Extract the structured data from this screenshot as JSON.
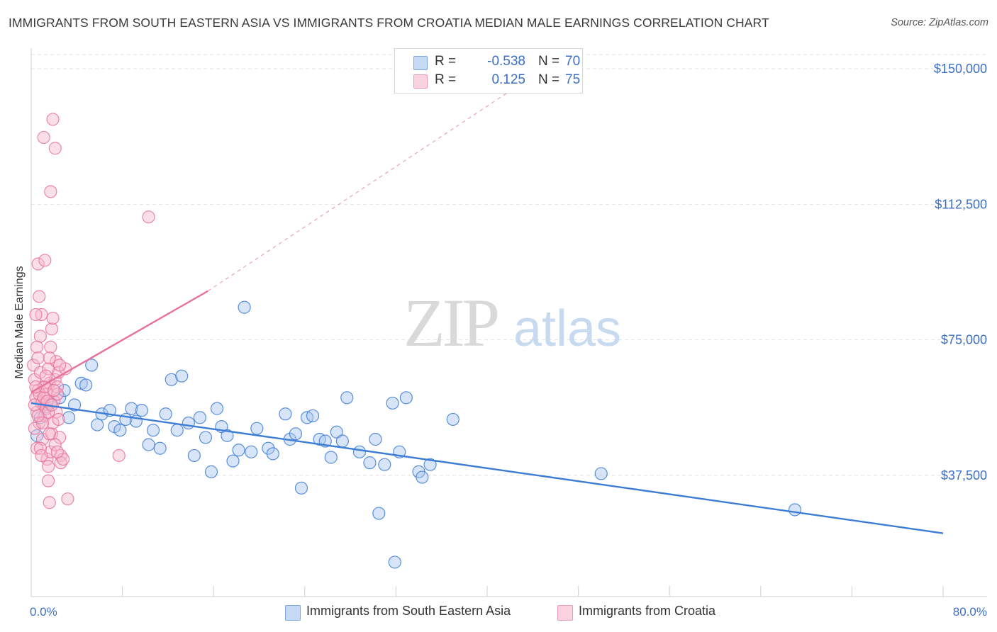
{
  "header": {
    "title": "IMMIGRANTS FROM SOUTH EASTERN ASIA VS IMMIGRANTS FROM CROATIA MEDIAN MALE EARNINGS CORRELATION CHART",
    "source": "Source: ZipAtlas.com"
  },
  "watermark": {
    "zip": "ZIP",
    "atlas": "atlas"
  },
  "legend": {
    "rows": [
      {
        "label": "R =",
        "r": "-0.538",
        "n_label": "N =",
        "n": "70",
        "color": "#a8c6f0"
      },
      {
        "label": "R =",
        "r": "0.125",
        "n_label": "N =",
        "n": "75",
        "color": "#f7b8cc"
      }
    ]
  },
  "bottom_legend": [
    {
      "label": "Immigrants from South Eastern Asia",
      "color": "#a8c6f0"
    },
    {
      "label": "Immigrants from Croatia",
      "color": "#f7b8cc"
    }
  ],
  "chart_data": {
    "type": "scatter",
    "title": "IMMIGRANTS FROM SOUTH EASTERN ASIA VS IMMIGRANTS FROM CROATIA MEDIAN MALE EARNINGS CORRELATION CHART",
    "xlabel": "",
    "ylabel": "Median Male Earnings",
    "xlim": [
      0,
      80
    ],
    "ylim": [
      0,
      155000
    ],
    "x_tick_labels": [
      "0.0%",
      "80.0%"
    ],
    "y_ticks": [
      37500,
      75000,
      112500,
      150000
    ],
    "y_tick_labels": [
      "$37,500",
      "$75,000",
      "$112,500",
      "$150,000"
    ],
    "grid": true,
    "series": [
      {
        "name": "Immigrants from South Eastern Asia",
        "color": "#3d7dd6",
        "fill": "#a8c6f0",
        "trend": {
          "x": [
            0,
            80
          ],
          "y": [
            57500,
            21500
          ]
        },
        "points": [
          [
            0.5,
            48500
          ],
          [
            0.8,
            53500
          ],
          [
            1.1,
            57000
          ],
          [
            1.3,
            56500
          ],
          [
            1.7,
            57500
          ],
          [
            2.5,
            59000
          ],
          [
            2.9,
            61000
          ],
          [
            3.3,
            53500
          ],
          [
            3.8,
            57000
          ],
          [
            4.4,
            63000
          ],
          [
            4.8,
            62500
          ],
          [
            5.3,
            68000
          ],
          [
            5.8,
            51500
          ],
          [
            6.2,
            54500
          ],
          [
            6.9,
            55500
          ],
          [
            7.3,
            51000
          ],
          [
            7.8,
            50000
          ],
          [
            8.3,
            53000
          ],
          [
            8.8,
            56000
          ],
          [
            9.2,
            52500
          ],
          [
            9.7,
            55500
          ],
          [
            10.3,
            46000
          ],
          [
            10.7,
            50000
          ],
          [
            11.3,
            45000
          ],
          [
            11.8,
            54500
          ],
          [
            12.3,
            64000
          ],
          [
            12.8,
            50000
          ],
          [
            13.2,
            65000
          ],
          [
            13.8,
            52000
          ],
          [
            14.3,
            43000
          ],
          [
            14.8,
            53500
          ],
          [
            15.3,
            48000
          ],
          [
            15.8,
            38500
          ],
          [
            16.3,
            56000
          ],
          [
            16.7,
            51000
          ],
          [
            17.2,
            48500
          ],
          [
            17.7,
            41500
          ],
          [
            18.2,
            44500
          ],
          [
            18.7,
            84000
          ],
          [
            19.3,
            44000
          ],
          [
            19.8,
            50500
          ],
          [
            20.8,
            45000
          ],
          [
            21.2,
            43500
          ],
          [
            22.3,
            54500
          ],
          [
            22.7,
            47500
          ],
          [
            23.2,
            49000
          ],
          [
            23.7,
            34000
          ],
          [
            24.2,
            53500
          ],
          [
            24.7,
            54000
          ],
          [
            25.3,
            47500
          ],
          [
            25.8,
            47000
          ],
          [
            26.3,
            42500
          ],
          [
            26.8,
            49500
          ],
          [
            27.3,
            47000
          ],
          [
            27.7,
            59000
          ],
          [
            28.8,
            44000
          ],
          [
            29.7,
            41000
          ],
          [
            30.2,
            47500
          ],
          [
            30.5,
            27000
          ],
          [
            31.0,
            40500
          ],
          [
            31.7,
            57500
          ],
          [
            32.3,
            44000
          ],
          [
            31.9,
            13500
          ],
          [
            32.9,
            59000
          ],
          [
            34.0,
            38500
          ],
          [
            34.3,
            37000
          ],
          [
            35.0,
            40500
          ],
          [
            37.0,
            53000
          ],
          [
            50.0,
            38000
          ],
          [
            67.0,
            28000
          ]
        ]
      },
      {
        "name": "Immigrants from Croatia",
        "color": "#e8729b",
        "fill": "#f7b8cc",
        "trend": {
          "x": [
            0,
            15.5
          ],
          "y": [
            60500,
            88500
          ],
          "dashed_to": {
            "x": [
              15.5,
              44
            ],
            "y": [
              88500,
              148000
            ]
          }
        },
        "points": [
          [
            0.2,
            68000
          ],
          [
            0.3,
            64000
          ],
          [
            0.4,
            59000
          ],
          [
            0.5,
            55000
          ],
          [
            0.6,
            61000
          ],
          [
            0.7,
            52000
          ],
          [
            0.8,
            66000
          ],
          [
            0.9,
            57500
          ],
          [
            1.0,
            47500
          ],
          [
            1.1,
            62000
          ],
          [
            0.3,
            50500
          ],
          [
            0.5,
            45000
          ],
          [
            0.6,
            96000
          ],
          [
            0.7,
            87000
          ],
          [
            0.8,
            76000
          ],
          [
            0.9,
            82000
          ],
          [
            1.0,
            58000
          ],
          [
            1.2,
            54000
          ],
          [
            1.3,
            56000
          ],
          [
            1.4,
            60000
          ],
          [
            1.5,
            67000
          ],
          [
            1.6,
            63000
          ],
          [
            1.7,
            73000
          ],
          [
            1.8,
            78000
          ],
          [
            1.9,
            81000
          ],
          [
            1.1,
            131000
          ],
          [
            1.2,
            97000
          ],
          [
            1.5,
            36000
          ],
          [
            1.6,
            30000
          ],
          [
            1.4,
            42000
          ],
          [
            1.7,
            44000
          ],
          [
            1.8,
            49000
          ],
          [
            1.9,
            52000
          ],
          [
            2.0,
            58000
          ],
          [
            2.1,
            64000
          ],
          [
            2.2,
            69000
          ],
          [
            2.3,
            62000
          ],
          [
            2.4,
            66000
          ],
          [
            2.5,
            48000
          ],
          [
            2.6,
            43000
          ],
          [
            1.5,
            40000
          ],
          [
            1.6,
            70000
          ],
          [
            1.7,
            116000
          ],
          [
            1.9,
            136000
          ],
          [
            2.1,
            128000
          ],
          [
            2.2,
            55000
          ],
          [
            2.3,
            60000
          ],
          [
            2.4,
            53000
          ],
          [
            2.6,
            41000
          ],
          [
            2.8,
            42000
          ],
          [
            3.0,
            67000
          ],
          [
            3.2,
            31000
          ],
          [
            0.4,
            82000
          ],
          [
            0.5,
            73000
          ],
          [
            0.6,
            70000
          ],
          [
            0.7,
            60000
          ],
          [
            0.8,
            45000
          ],
          [
            0.9,
            43000
          ],
          [
            1.0,
            52000
          ],
          [
            1.1,
            59000
          ],
          [
            1.2,
            62000
          ],
          [
            1.3,
            65000
          ],
          [
            1.4,
            58000
          ],
          [
            1.5,
            55000
          ],
          [
            1.6,
            49000
          ],
          [
            1.8,
            57000
          ],
          [
            2.0,
            61000
          ],
          [
            2.1,
            46000
          ],
          [
            2.3,
            44000
          ],
          [
            2.5,
            68000
          ],
          [
            0.3,
            57000
          ],
          [
            0.4,
            62000
          ],
          [
            0.6,
            54000
          ],
          [
            7.7,
            43000
          ],
          [
            10.3,
            109000
          ]
        ]
      }
    ]
  }
}
